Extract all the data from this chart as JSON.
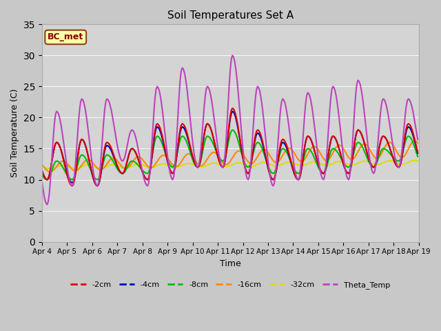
{
  "title": "Soil Temperatures Set A",
  "xlabel": "Time",
  "ylabel": "Soil Temperature (C)",
  "ylim": [
    0,
    35
  ],
  "annotation": "BC_met",
  "fig_facecolor": "#c8c8c8",
  "plot_facecolor": "#d4d4d4",
  "series": {
    "-2cm": {
      "color": "#dd0000",
      "linewidth": 1.5
    },
    "-4cm": {
      "color": "#0000bb",
      "linewidth": 1.5
    },
    "-8cm": {
      "color": "#00bb00",
      "linewidth": 1.5
    },
    "-16cm": {
      "color": "#ff8800",
      "linewidth": 1.5
    },
    "-32cm": {
      "color": "#dddd00",
      "linewidth": 1.5
    },
    "Theta_Temp": {
      "color": "#bb44bb",
      "linewidth": 1.5
    }
  },
  "tick_labels": [
    "Apr 4",
    "Apr 5",
    "Apr 6",
    "Apr 7",
    "Apr 8",
    "Apr 9",
    "Apr 10",
    "Apr 11",
    "Apr 12",
    "Apr 13",
    "Apr 14",
    "Apr 15",
    "Apr 16",
    "Apr 17",
    "Apr 18",
    "Apr 19"
  ],
  "yticks": [
    0,
    5,
    10,
    15,
    20,
    25,
    30,
    35
  ]
}
